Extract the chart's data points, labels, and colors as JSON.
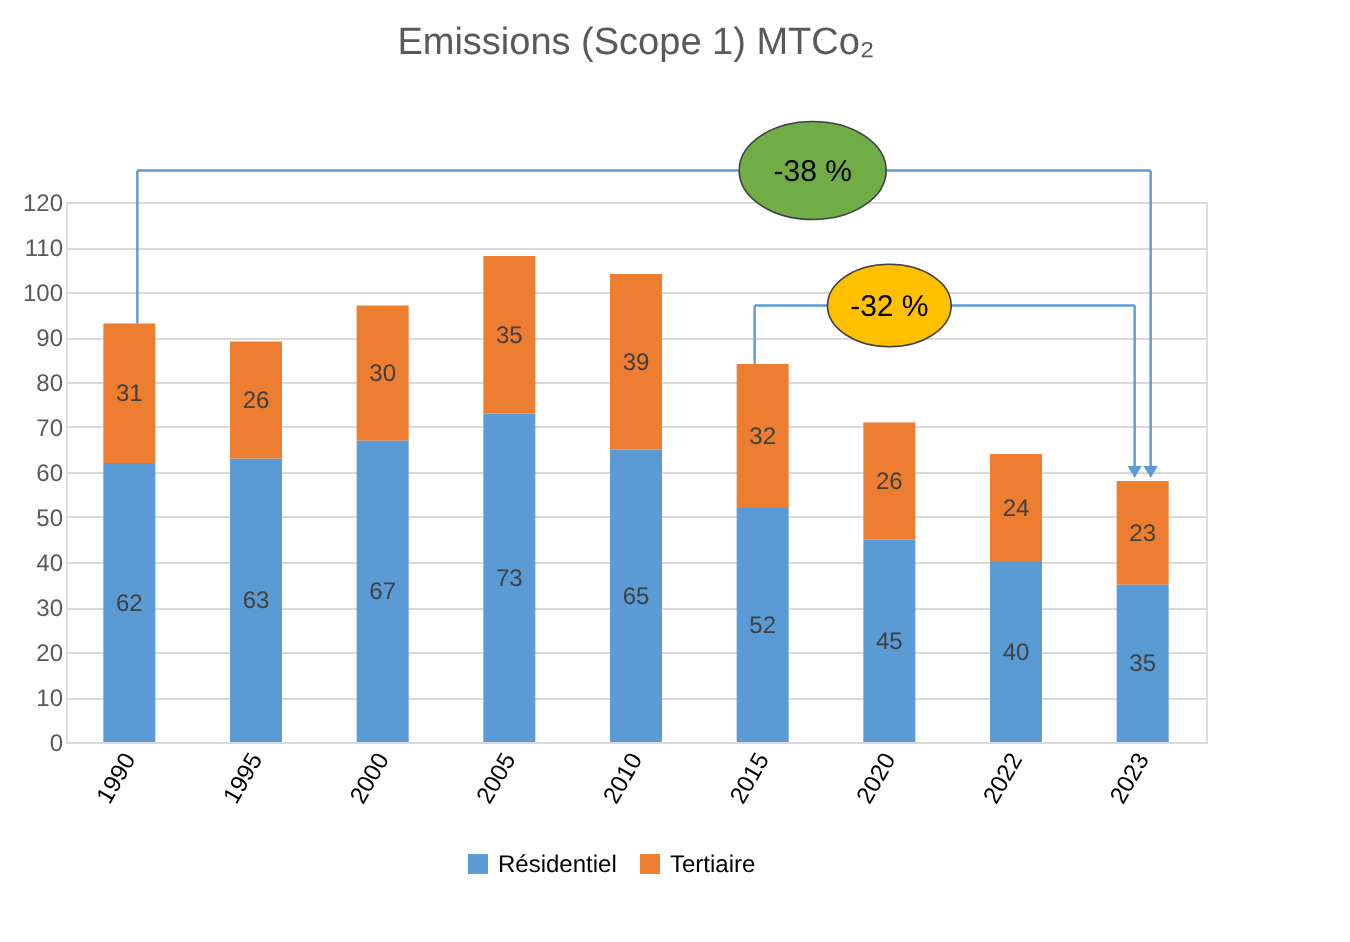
{
  "chart_data": {
    "type": "bar",
    "title": "Emissions (Scope 1) MTCo₂",
    "categories": [
      "1990",
      "1995",
      "2000",
      "2005",
      "2010",
      "2015",
      "2020",
      "2022",
      "2023"
    ],
    "stacked": true,
    "series": [
      {
        "name": "Résidentiel",
        "color": "#5b9bd5",
        "values": [
          62,
          63,
          67,
          73,
          65,
          52,
          45,
          40,
          35
        ]
      },
      {
        "name": "Tertiaire",
        "color": "#ed7d31",
        "values": [
          31,
          26,
          30,
          35,
          39,
          32,
          26,
          24,
          23
        ]
      }
    ],
    "ylim": [
      0,
      120
    ],
    "yticks": [
      0,
      10,
      20,
      30,
      40,
      50,
      60,
      70,
      80,
      90,
      100,
      110,
      120
    ],
    "grid": "y",
    "legend": "bottom",
    "data_labels": true,
    "annotations": [
      "-38 %",
      "-32 %"
    ]
  }
}
